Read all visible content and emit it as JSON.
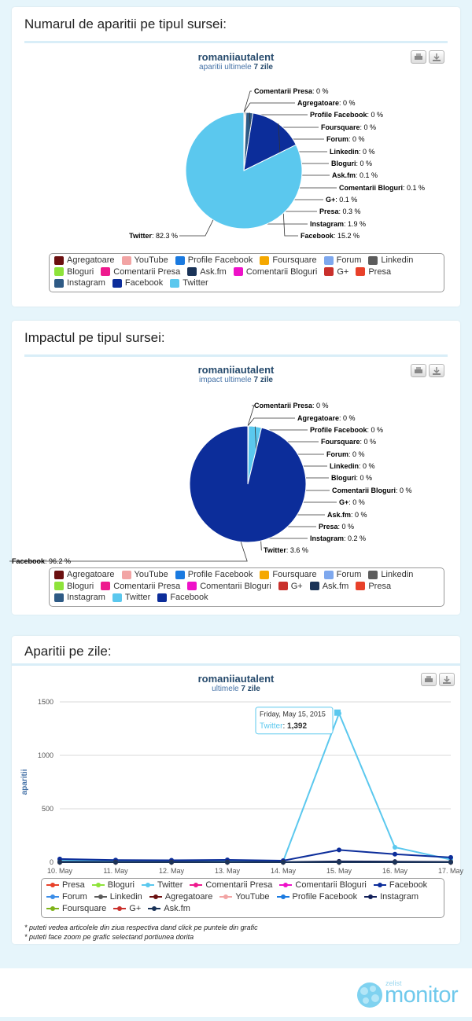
{
  "cards": [
    {
      "title": "Numarul de aparitii pe tipul sursei:",
      "chart_title": "romaniiautalent",
      "chart_sub_prefix": "aparitii ultimele",
      "chart_sub_bold": "7 zile"
    },
    {
      "title": "Impactul pe tipul sursei:",
      "chart_title": "romaniiautalent",
      "chart_sub_prefix": "impact ultimele",
      "chart_sub_bold": "7 zile"
    },
    {
      "title": "Aparitii pe zile:",
      "chart_title": "romaniiautalent",
      "chart_sub_prefix": "ultimele",
      "chart_sub_bold": "7 zile"
    }
  ],
  "notes": [
    "* puteti vedea articolele din ziua respectiva dand click pe puntele din grafic",
    "* puteti face zoom pe grafic selectand portiunea dorita"
  ],
  "brand": {
    "small": "zelist",
    "big": "monitor"
  },
  "chart_data": [
    {
      "type": "pie",
      "labels": [
        "Comentarii Presa",
        "Agregatoare",
        "Profile Facebook",
        "Foursquare",
        "Forum",
        "Linkedin",
        "Bloguri",
        "Ask.fm",
        "Comentarii Bloguri",
        "G+",
        "Presa",
        "Instagram",
        "Facebook",
        "Twitter"
      ],
      "values": [
        0,
        0,
        0,
        0,
        0,
        0,
        0,
        0.1,
        0.1,
        0.1,
        0.3,
        1.9,
        15.2,
        82.3
      ],
      "value_text": [
        "0 %",
        "0 %",
        "0 %",
        "0 %",
        "0 %",
        "0 %",
        "0 %",
        "0.1 %",
        "0.1 %",
        "0.1 %",
        "0.3 %",
        "1.9 %",
        "15.2 %",
        "82.3 %"
      ],
      "colors": {
        "Twitter": "#5bc8ee",
        "Facebook": "#0c2d9a",
        "Instagram": "#2e5a85",
        "Presa": "#e8412a",
        "G+": "#c9302c",
        "Comentarii Bloguri": "#ee11c8",
        "Ask.fm": "#1a3358"
      },
      "legend": [
        {
          "label": "Agregatoare",
          "color": "#6b1010"
        },
        {
          "label": "YouTube",
          "color": "#f2a4a4"
        },
        {
          "label": "Profile Facebook",
          "color": "#1a7ae0"
        },
        {
          "label": "Foursquare",
          "color": "#f5a800"
        },
        {
          "label": "Forum",
          "color": "#7ea8ee"
        },
        {
          "label": "Linkedin",
          "color": "#5c5c5c"
        },
        {
          "label": "Bloguri",
          "color": "#8ee33a"
        },
        {
          "label": "Comentarii Presa",
          "color": "#ee1a8e"
        },
        {
          "label": "Ask.fm",
          "color": "#1a3358"
        },
        {
          "label": "Comentarii Bloguri",
          "color": "#ee11c8"
        },
        {
          "label": "G+",
          "color": "#c9302c"
        },
        {
          "label": "Presa",
          "color": "#e8412a"
        },
        {
          "label": "Instagram",
          "color": "#2e5a85"
        },
        {
          "label": "Facebook",
          "color": "#0c2d9a"
        },
        {
          "label": "Twitter",
          "color": "#5bc8ee"
        }
      ]
    },
    {
      "type": "pie",
      "labels": [
        "Comentarii Presa",
        "Agregatoare",
        "Profile Facebook",
        "Foursquare",
        "Forum",
        "Linkedin",
        "Bloguri",
        "Comentarii Bloguri",
        "G+",
        "Ask.fm",
        "Presa",
        "Instagram",
        "Twitter",
        "Facebook"
      ],
      "values": [
        0,
        0,
        0,
        0,
        0,
        0,
        0,
        0,
        0,
        0,
        0,
        0.2,
        3.6,
        96.2
      ],
      "value_text": [
        "0 %",
        "0 %",
        "0 %",
        "0 %",
        "0 %",
        "0 %",
        "0 %",
        "0 %",
        "0 %",
        "0 %",
        "0 %",
        "0.2 %",
        "3.6 %",
        "96.2 %"
      ],
      "colors": {
        "Twitter": "#5bc8ee",
        "Facebook": "#0c2d9a",
        "Instagram": "#2e5a85"
      },
      "legend": [
        {
          "label": "Agregatoare",
          "color": "#6b1010"
        },
        {
          "label": "YouTube",
          "color": "#f2a4a4"
        },
        {
          "label": "Profile Facebook",
          "color": "#1a7ae0"
        },
        {
          "label": "Foursquare",
          "color": "#f5a800"
        },
        {
          "label": "Forum",
          "color": "#7ea8ee"
        },
        {
          "label": "Linkedin",
          "color": "#5c5c5c"
        },
        {
          "label": "Bloguri",
          "color": "#8ee33a"
        },
        {
          "label": "Comentarii Presa",
          "color": "#ee1a8e"
        },
        {
          "label": "Comentarii Bloguri",
          "color": "#ee11c8"
        },
        {
          "label": "G+",
          "color": "#c9302c"
        },
        {
          "label": "Ask.fm",
          "color": "#1a3358"
        },
        {
          "label": "Presa",
          "color": "#e8412a"
        },
        {
          "label": "Instagram",
          "color": "#2e5a85"
        },
        {
          "label": "Twitter",
          "color": "#5bc8ee"
        },
        {
          "label": "Facebook",
          "color": "#0c2d9a"
        }
      ]
    },
    {
      "type": "line",
      "x": [
        "10. May",
        "11. May",
        "12. May",
        "13. May",
        "14. May",
        "15. May",
        "16. May",
        "17. May"
      ],
      "ylabel": "aparitii",
      "ylim": [
        0,
        1500
      ],
      "yticks": [
        0,
        500,
        1000,
        1500
      ],
      "grid": true,
      "series": [
        {
          "name": "Presa",
          "color": "#e8412a",
          "values": [
            0,
            0,
            0,
            0,
            0,
            0,
            0,
            0
          ]
        },
        {
          "name": "Bloguri",
          "color": "#8ee33a",
          "values": [
            0,
            0,
            0,
            0,
            0,
            0,
            0,
            0
          ]
        },
        {
          "name": "Twitter",
          "color": "#5bc8ee",
          "values": [
            20,
            10,
            10,
            12,
            10,
            1392,
            140,
            25
          ]
        },
        {
          "name": "Comentarii Presa",
          "color": "#ee1a8e",
          "values": [
            0,
            0,
            0,
            0,
            0,
            0,
            0,
            0
          ]
        },
        {
          "name": "Comentarii Bloguri",
          "color": "#ee11c8",
          "values": [
            0,
            0,
            0,
            0,
            0,
            0,
            0,
            0
          ]
        },
        {
          "name": "Facebook",
          "color": "#0c2d9a",
          "values": [
            30,
            20,
            18,
            22,
            15,
            115,
            75,
            45
          ]
        },
        {
          "name": "Forum",
          "color": "#3c8de8",
          "values": [
            0,
            0,
            0,
            0,
            0,
            0,
            0,
            0
          ]
        },
        {
          "name": "Linkedin",
          "color": "#5c5c5c",
          "values": [
            0,
            0,
            0,
            0,
            0,
            0,
            0,
            0
          ]
        },
        {
          "name": "Agregatoare",
          "color": "#6b1010",
          "values": [
            0,
            0,
            0,
            0,
            0,
            0,
            0,
            0
          ]
        },
        {
          "name": "YouTube",
          "color": "#f2a4a4",
          "values": [
            0,
            0,
            0,
            0,
            0,
            0,
            0,
            0
          ]
        },
        {
          "name": "Profile Facebook",
          "color": "#1a7ae0",
          "values": [
            0,
            0,
            0,
            0,
            0,
            0,
            0,
            0
          ]
        },
        {
          "name": "Instagram",
          "color": "#12205a",
          "values": [
            5,
            3,
            3,
            4,
            2,
            8,
            6,
            4
          ]
        },
        {
          "name": "Foursquare",
          "color": "#7fb31a",
          "values": [
            0,
            0,
            0,
            0,
            0,
            0,
            0,
            0
          ]
        },
        {
          "name": "G+",
          "color": "#c9302c",
          "values": [
            0,
            0,
            0,
            0,
            0,
            0,
            0,
            0
          ]
        },
        {
          "name": "Ask.fm",
          "color": "#1a3358",
          "values": [
            0,
            0,
            0,
            0,
            0,
            0,
            0,
            0
          ]
        }
      ],
      "tooltip": {
        "date": "Friday, May 15, 2015",
        "series": "Twitter",
        "value": "1,392"
      }
    }
  ]
}
